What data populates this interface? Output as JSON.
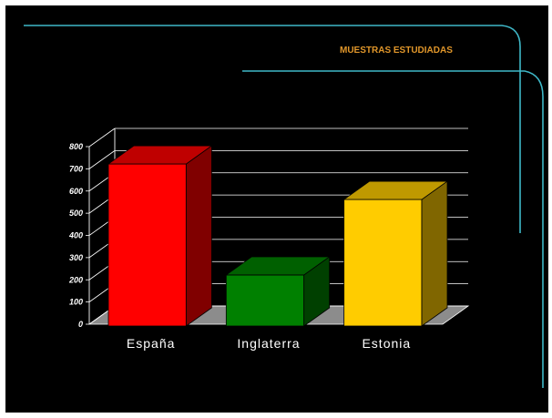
{
  "slide": {
    "background": "#000000",
    "accent_line_color": "#3fb8c8"
  },
  "chart_data": {
    "type": "bar",
    "title": "MUESTRAS ESTUDIADAS",
    "categories": [
      "España",
      "Inglaterra",
      "Estonia"
    ],
    "values": [
      730,
      230,
      570
    ],
    "colors": [
      "#ff0000",
      "#008000",
      "#ffcc00"
    ],
    "ylim": [
      0,
      800
    ],
    "yticks": [
      "0",
      "100",
      "200",
      "300",
      "400",
      "500",
      "600",
      "700",
      "800"
    ],
    "grid": true,
    "three_d": true,
    "xlabel": "",
    "ylabel": ""
  }
}
